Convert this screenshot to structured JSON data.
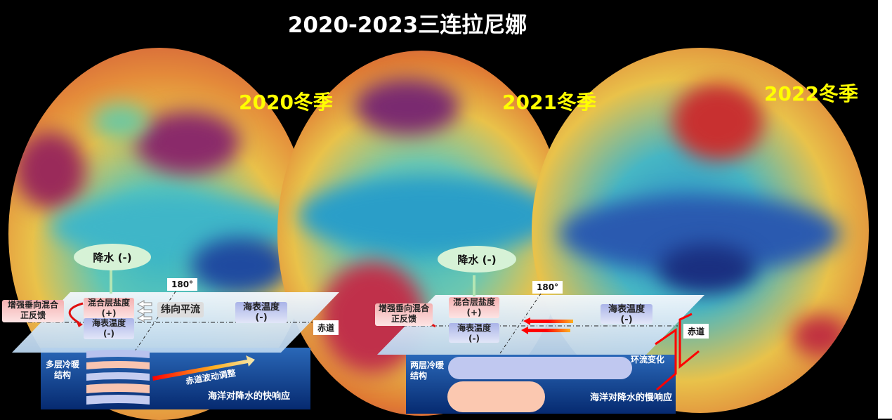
{
  "title": "2020-2023三连拉尼娜",
  "globes": [
    {
      "label": "2020冬季"
    },
    {
      "label": "2021冬季"
    },
    {
      "label": "2022冬季"
    }
  ],
  "left_panel": {
    "precip": "降水 (-)",
    "salinity": [
      "混合层盐度",
      "(+)"
    ],
    "sst_west": [
      "海表温度",
      "(-)"
    ],
    "feedback": [
      "增强垂向混合",
      "正反馈"
    ],
    "advection": "纬向平流",
    "sst_east": [
      "海表温度",
      "(-)"
    ],
    "lon": "180°",
    "equator": "赤道",
    "structure": [
      "多层冷暖",
      "结构"
    ],
    "wave": "赤道波动调整",
    "response": "海洋对降水的快响应"
  },
  "right_panel": {
    "precip": "降水 (-)",
    "salinity": [
      "混合层盐度",
      "(+)"
    ],
    "sst_west": [
      "海表温度",
      "(-)"
    ],
    "feedback": [
      "增强垂向混合",
      "正反馈"
    ],
    "sst_east": [
      "海表温度",
      "(-)"
    ],
    "lon": "180°",
    "equator": "赤道",
    "structure": [
      "两层冷暖",
      "结构"
    ],
    "circulation": "环流变化",
    "response": "海洋对降水的慢响应"
  },
  "colors": {
    "background": "#000000",
    "year_label": "#ffff00",
    "cold": "#1a4fa8",
    "warm": "#c8302a"
  }
}
